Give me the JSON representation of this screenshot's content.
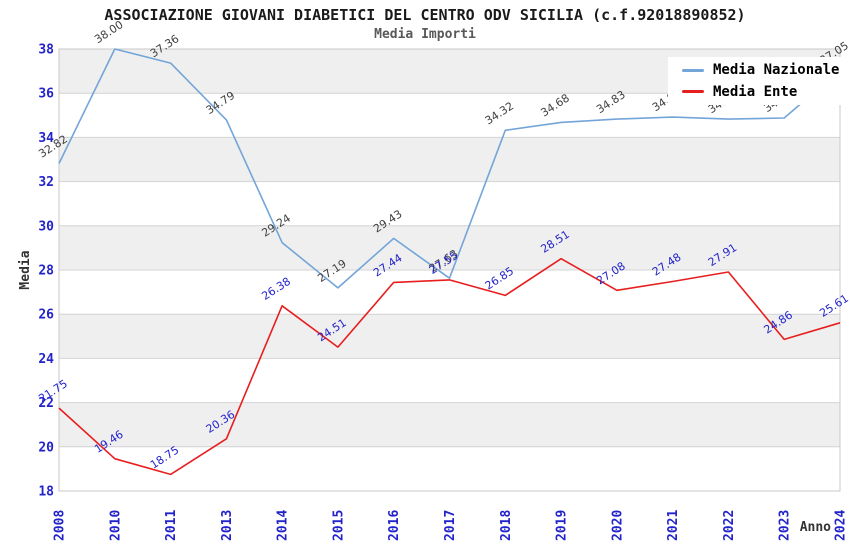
{
  "chart_data": {
    "type": "line",
    "title": "ASSOCIAZIONE GIOVANI DIABETICI DEL CENTRO ODV SICILIA (c.f.92018890852)",
    "subtitle": "Media Importi",
    "xlabel": "Anno",
    "ylabel": "Media",
    "ylim": [
      18,
      38
    ],
    "ytick_step": 2,
    "grid": true,
    "alternating_bands": true,
    "legend_position": "top-right",
    "categories": [
      "2008",
      "2010",
      "2011",
      "2013",
      "2014",
      "2015",
      "2016",
      "2017",
      "2018",
      "2019",
      "2020",
      "2021",
      "2022",
      "2023",
      "2024"
    ],
    "series": [
      {
        "name": "Media Nazionale",
        "color": "#74a5d8",
        "label_color": "#3f3f3f",
        "values": [
          32.82,
          38.0,
          37.36,
          34.79,
          29.24,
          27.19,
          29.43,
          27.63,
          34.32,
          34.68,
          34.83,
          34.92,
          34.83,
          34.88,
          37.05
        ]
      },
      {
        "name": "Media Ente",
        "color": "#e81e1e",
        "label_color": "#2323cc",
        "values": [
          21.75,
          19.46,
          18.75,
          20.36,
          26.38,
          24.51,
          27.44,
          27.55,
          26.85,
          28.51,
          27.08,
          27.48,
          27.91,
          24.86,
          25.61
        ]
      }
    ],
    "axis_tick_color": "#2323cc",
    "axis_title_color": "#333333",
    "band_color": "#efefef",
    "grid_color": "#d4d4d4",
    "plot_border_color": "#c9c9c9"
  }
}
